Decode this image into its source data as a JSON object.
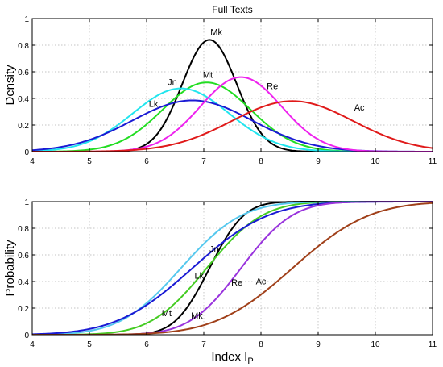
{
  "chart_data": [
    {
      "type": "line",
      "title": "Full Texts",
      "xlabel": "",
      "ylabel": "Density",
      "xlim": [
        4,
        11
      ],
      "ylim": [
        0,
        1
      ],
      "x_ticks": [
        "4",
        "5",
        "6",
        "7",
        "8",
        "9",
        "10",
        "11"
      ],
      "y_ticks": [
        "0",
        "0.2",
        "0.4",
        "0.6",
        "0.8",
        "1"
      ],
      "grid": true,
      "series": [
        {
          "name": "Mk",
          "color": "#000000",
          "distribution": "normal",
          "mean": 7.1,
          "sd": 0.475,
          "peak": 0.84,
          "label_at": [
            7.22,
            0.875
          ]
        },
        {
          "name": "Mt",
          "color": "#22dd22",
          "distribution": "normal",
          "mean": 7.05,
          "sd": 0.77,
          "peak": 0.52,
          "label_at": [
            7.07,
            0.555
          ]
        },
        {
          "name": "Jn",
          "color": "#22e5ee",
          "distribution": "normal",
          "mean": 6.6,
          "sd": 0.84,
          "peak": 0.475,
          "label_at": [
            6.45,
            0.5
          ]
        },
        {
          "name": "Lk",
          "color": "#1a1ad4",
          "distribution": "normal",
          "mean": 6.8,
          "sd": 1.05,
          "peak": 0.385,
          "label_at": [
            6.12,
            0.335
          ]
        },
        {
          "name": "Re",
          "color": "#ee22ee",
          "distribution": "normal",
          "mean": 7.65,
          "sd": 0.71,
          "peak": 0.56,
          "label_at": [
            8.2,
            0.47
          ]
        },
        {
          "name": "Ac",
          "color": "#e01a1a",
          "distribution": "normal",
          "mean": 8.55,
          "sd": 1.06,
          "peak": 0.38,
          "label_at": [
            9.72,
            0.31
          ]
        }
      ]
    },
    {
      "type": "line",
      "title": "",
      "xlabel": "Index I",
      "xlabel_sub": "P",
      "ylabel": "Probability",
      "xlim": [
        4,
        11
      ],
      "ylim": [
        0,
        1
      ],
      "x_ticks": [
        "4",
        "5",
        "6",
        "7",
        "8",
        "9",
        "10",
        "11"
      ],
      "y_ticks": [
        "0",
        "0.2",
        "0.4",
        "0.6",
        "0.8",
        "1"
      ],
      "grid": true,
      "series": [
        {
          "name": "Mk",
          "color": "#000000",
          "distribution": "normal_cdf",
          "mean": 7.1,
          "sd": 0.475,
          "label_at": [
            6.88,
            0.12
          ]
        },
        {
          "name": "Mt",
          "color": "#44cc22",
          "distribution": "normal_cdf",
          "mean": 7.05,
          "sd": 0.77,
          "label_at": [
            6.35,
            0.14
          ]
        },
        {
          "name": "Jn",
          "color": "#55c8ee",
          "distribution": "normal_cdf",
          "mean": 6.6,
          "sd": 0.84,
          "label_at": [
            7.18,
            0.62
          ]
        },
        {
          "name": "Lk",
          "color": "#1a1ad4",
          "distribution": "normal_cdf",
          "mean": 6.8,
          "sd": 1.05,
          "label_at": [
            6.92,
            0.42
          ]
        },
        {
          "name": "Re",
          "color": "#9933dd",
          "distribution": "normal_cdf",
          "mean": 7.65,
          "sd": 0.71,
          "label_at": [
            7.58,
            0.37
          ]
        },
        {
          "name": "Ac",
          "color": "#a0401a",
          "distribution": "normal_cdf",
          "mean": 8.55,
          "sd": 1.06,
          "label_at": [
            8.0,
            0.38
          ]
        }
      ]
    }
  ]
}
